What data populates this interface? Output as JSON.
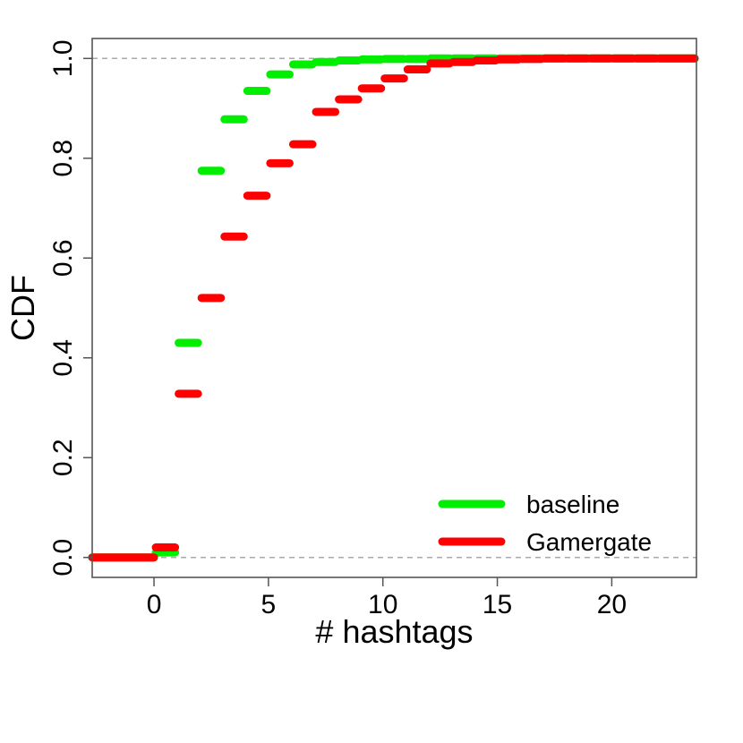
{
  "chart_data": {
    "type": "line",
    "subtype": "step-cdf",
    "title": "",
    "xlabel": "# hashtags",
    "ylabel": "CDF",
    "xlim": [
      -2.7,
      23.7
    ],
    "ylim": [
      -0.04,
      1.04
    ],
    "x_ticks": [
      0,
      5,
      10,
      15,
      20
    ],
    "y_ticks": [
      0.0,
      0.2,
      0.4,
      0.6,
      0.8,
      1.0
    ],
    "y_tick_labels": [
      "0.0",
      "0.2",
      "0.4",
      "0.6",
      "0.8",
      "1.0"
    ],
    "reference_lines": [
      0.0,
      1.0
    ],
    "grid": false,
    "legend_position": "bottom-right",
    "series": [
      {
        "name": "baseline",
        "color": "#00ee00",
        "steps": [
          {
            "x": 0,
            "y": 0.01
          },
          {
            "x": 1,
            "y": 0.43
          },
          {
            "x": 2,
            "y": 0.775
          },
          {
            "x": 3,
            "y": 0.878
          },
          {
            "x": 4,
            "y": 0.935
          },
          {
            "x": 5,
            "y": 0.968
          },
          {
            "x": 6,
            "y": 0.988
          },
          {
            "x": 7,
            "y": 0.993
          },
          {
            "x": 8,
            "y": 0.996
          },
          {
            "x": 9,
            "y": 0.998
          },
          {
            "x": 10,
            "y": 0.999
          },
          {
            "x": 11,
            "y": 0.999
          },
          {
            "x": 12,
            "y": 1.0
          },
          {
            "x": 13,
            "y": 1.0
          },
          {
            "x": 14,
            "y": 1.0
          },
          {
            "x": 15,
            "y": 1.0
          }
        ]
      },
      {
        "name": "Gamergate",
        "color": "#ff0000",
        "steps": [
          {
            "x": 0,
            "y": 0.02
          },
          {
            "x": 1,
            "y": 0.328
          },
          {
            "x": 2,
            "y": 0.52
          },
          {
            "x": 3,
            "y": 0.643
          },
          {
            "x": 4,
            "y": 0.725
          },
          {
            "x": 5,
            "y": 0.79
          },
          {
            "x": 6,
            "y": 0.828
          },
          {
            "x": 7,
            "y": 0.893
          },
          {
            "x": 8,
            "y": 0.918
          },
          {
            "x": 9,
            "y": 0.94
          },
          {
            "x": 10,
            "y": 0.96
          },
          {
            "x": 11,
            "y": 0.978
          },
          {
            "x": 12,
            "y": 0.99
          },
          {
            "x": 13,
            "y": 0.993
          },
          {
            "x": 14,
            "y": 0.996
          },
          {
            "x": 15,
            "y": 0.998
          },
          {
            "x": 16,
            "y": 0.999
          },
          {
            "x": 17,
            "y": 1.0
          },
          {
            "x": 18,
            "y": 1.0
          },
          {
            "x": 19,
            "y": 1.0
          },
          {
            "x": 20,
            "y": 1.0
          },
          {
            "x": 21,
            "y": 1.0
          },
          {
            "x": 22,
            "y": 1.0
          }
        ]
      }
    ]
  }
}
